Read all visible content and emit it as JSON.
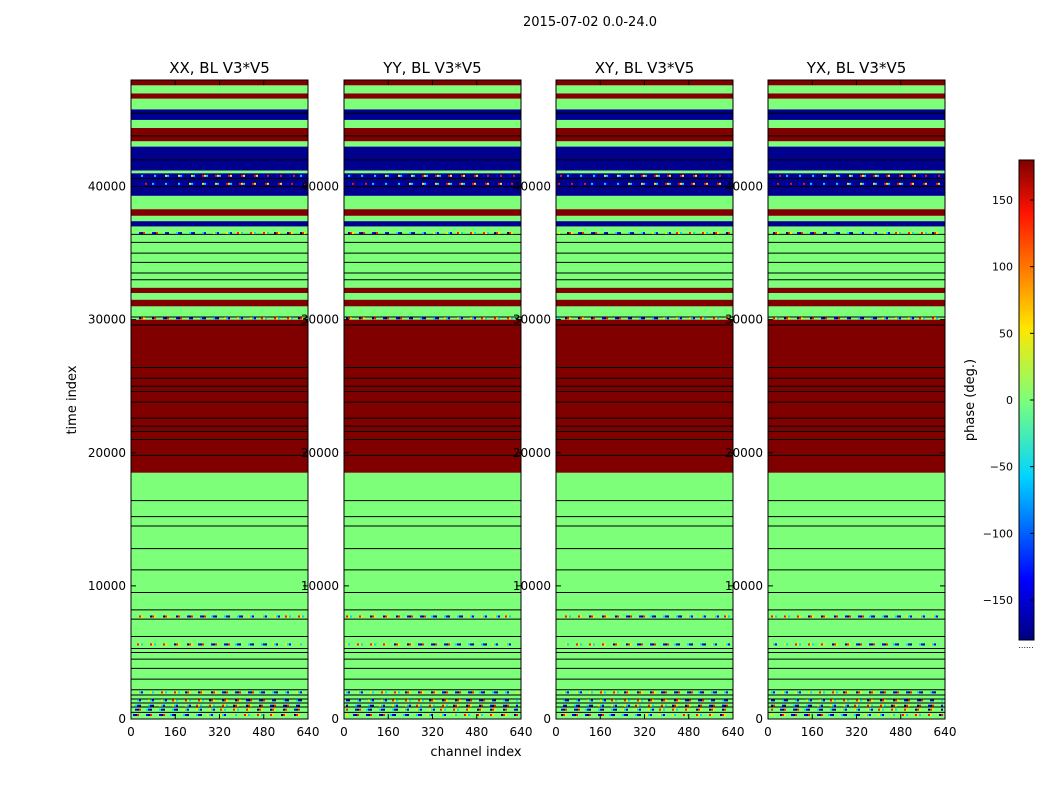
{
  "chart_data": {
    "type": "heatmap",
    "suptitle": "2015-07-02 0.0-24.0",
    "xlabel": "channel index",
    "ylabel": "time index",
    "xlim": [
      0,
      640
    ],
    "ylim": [
      0,
      48000
    ],
    "xticks": [
      "0",
      "160",
      "320",
      "480",
      "640"
    ],
    "yticks": [
      "0",
      "10000",
      "20000",
      "30000",
      "40000"
    ],
    "colorscale": "jet",
    "colorbar": {
      "label": "phase (deg.)",
      "range": [
        -180,
        180
      ],
      "ticks": [
        "150",
        "100",
        "50",
        "0",
        "−50",
        "−100",
        "−150"
      ],
      "footnote": "......"
    },
    "panels": [
      {
        "title": "XX, BL V3*V5"
      },
      {
        "title": "YY, BL V3*V5"
      },
      {
        "title": "XY, BL V3*V5"
      },
      {
        "title": "YX, BL V3*V5"
      }
    ],
    "colors": {
      "high": "#800000",
      "zero": "#7dff7a",
      "low": "#00008f",
      "line": "#000000"
    },
    "bands": [
      {
        "from": 0,
        "to": 18500,
        "phase": 0
      },
      {
        "from": 18500,
        "to": 30000,
        "phase": 180
      },
      {
        "from": 30000,
        "to": 31000,
        "phase": 0
      },
      {
        "from": 31000,
        "to": 31500,
        "phase": 180
      },
      {
        "from": 31500,
        "to": 32000,
        "phase": 0
      },
      {
        "from": 32000,
        "to": 32400,
        "phase": 180
      },
      {
        "from": 32400,
        "to": 37000,
        "phase": 0
      },
      {
        "from": 37000,
        "to": 37400,
        "phase": -180
      },
      {
        "from": 37400,
        "to": 37800,
        "phase": 0
      },
      {
        "from": 37800,
        "to": 38300,
        "phase": 180
      },
      {
        "from": 38300,
        "to": 39300,
        "phase": 0
      },
      {
        "from": 39300,
        "to": 41000,
        "phase": -180
      },
      {
        "from": 41000,
        "to": 41200,
        "phase": 0
      },
      {
        "from": 41200,
        "to": 43000,
        "phase": -180
      },
      {
        "from": 43000,
        "to": 43400,
        "phase": 0
      },
      {
        "from": 43400,
        "to": 44400,
        "phase": 180
      },
      {
        "from": 44400,
        "to": 45000,
        "phase": 0
      },
      {
        "from": 45000,
        "to": 45800,
        "phase": -180
      },
      {
        "from": 45800,
        "to": 46600,
        "phase": 0
      },
      {
        "from": 46600,
        "to": 47000,
        "phase": 180
      },
      {
        "from": 47000,
        "to": 47600,
        "phase": 0
      },
      {
        "from": 47600,
        "to": 48000,
        "phase": 180
      }
    ],
    "dark_lines": [
      500,
      900,
      1200,
      1500,
      1800,
      2200,
      3000,
      3800,
      4500,
      5000,
      5300,
      6200,
      7500,
      8200,
      9500,
      11200,
      12800,
      14500,
      15200,
      16400,
      19800,
      21000,
      21600,
      22000,
      22600,
      23800,
      24600,
      25000,
      25600,
      26400,
      29600,
      30200,
      33000,
      33500,
      34300,
      35000,
      35800,
      36400,
      40000,
      40600,
      42000,
      43800,
      45500
    ],
    "noisy_rows": [
      300,
      700,
      1000,
      1400,
      2000,
      5600,
      7700,
      30100,
      36500,
      40200,
      40800
    ]
  }
}
